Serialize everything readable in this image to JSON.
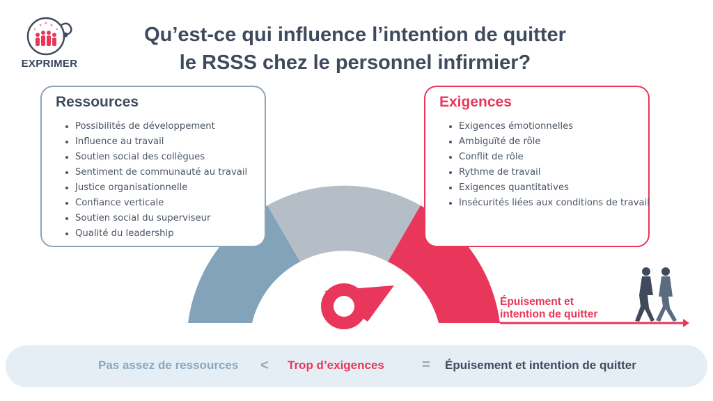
{
  "logo": {
    "text": "EXPRIMER",
    "icon": "people-stethoscope-icon"
  },
  "title": {
    "line1": "Qu’est-ce qui influence l’intention de quitter",
    "line2": "le RSSS chez le personnel infirmier?"
  },
  "resources": {
    "heading": "Ressources",
    "items": [
      "Possibilités de développement",
      "Influence au travail",
      "Soutien social des collègues",
      "Sentiment de communauté au travail",
      "Justice organisationnelle",
      "Confiance verticale",
      "Soutien social du superviseur",
      "Qualité du leadership"
    ]
  },
  "demands": {
    "heading": "Exigences",
    "items": [
      "Exigences émotionnelles",
      "Ambiguïté de rôle",
      "Conflit de rôle",
      "Rythme de travail",
      "Exigences quantitatives",
      "Insécurités liées aux conditions de travail"
    ]
  },
  "gauge": {
    "segments": [
      "resources",
      "neutral",
      "demands"
    ],
    "needle_points_to": "demands"
  },
  "exit_label": {
    "line1": "Épuisement et",
    "line2": "intention de quitter",
    "icon": "walking-people-icon"
  },
  "equation": {
    "left": "Pas assez de ressources",
    "op1": "<",
    "middle": "Trop d’exigences",
    "op2": "=",
    "result": "Épuisement et intention de quitter"
  },
  "colors": {
    "resources_blue": "#82a3b9",
    "neutral_gray": "#b5bdc7",
    "demands_red": "#e8375a",
    "text_dark": "#3f4a5c",
    "bar_bg": "#e5eef5"
  }
}
